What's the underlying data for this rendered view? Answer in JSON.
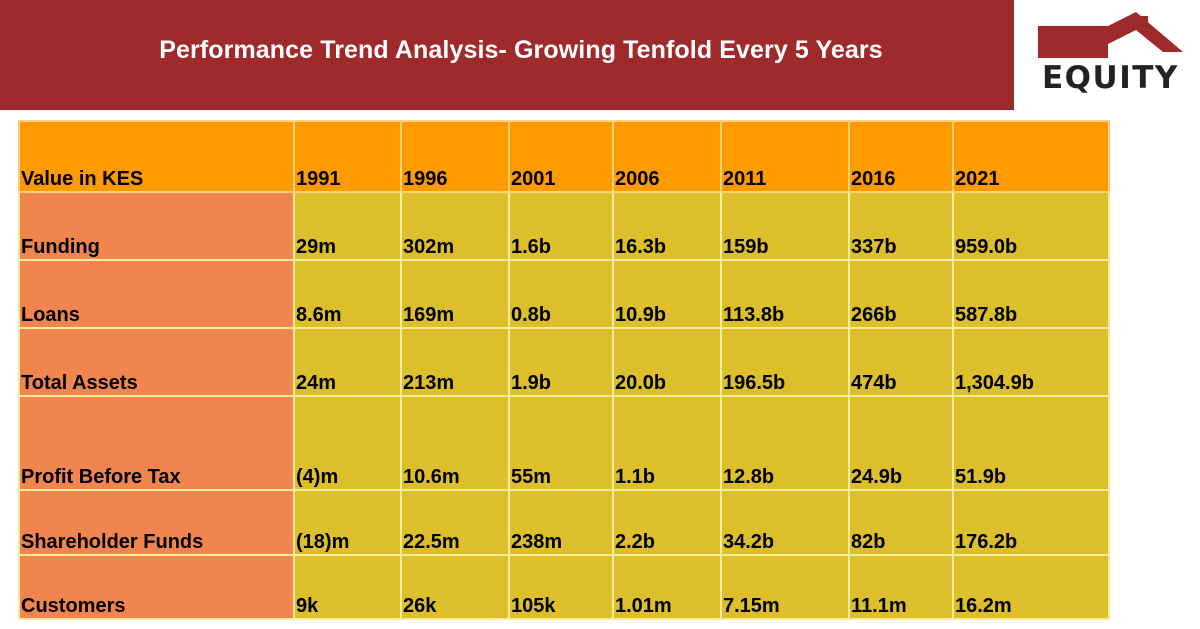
{
  "title": "Performance Trend Analysis- Growing Tenfold Every 5 Years",
  "logo": {
    "text": "EQUITY",
    "icon": "house-roof-icon",
    "color": "#9e2a2b"
  },
  "colors": {
    "banner": "#9e2a2b",
    "header_row": "#ff9a00",
    "label_column": "#f08550",
    "value_cells": "#dcbf2a"
  },
  "table": {
    "header": [
      "Value in KES",
      "1991",
      "1996",
      "2001",
      "2006",
      "2011",
      "2016",
      "2021"
    ],
    "rows": [
      {
        "label": "Funding",
        "values": [
          "29m",
          "302m",
          "1.6b",
          "16.3b",
          "159b",
          "337b",
          "959.0b"
        ]
      },
      {
        "label": "Loans",
        "values": [
          "8.6m",
          "169m",
          "0.8b",
          "10.9b",
          "113.8b",
          "266b",
          "587.8b"
        ]
      },
      {
        "label": "Total Assets",
        "values": [
          "24m",
          "213m",
          "1.9b",
          "20.0b",
          "196.5b",
          "474b",
          "1,304.9b"
        ]
      },
      {
        "label": "Profit Before Tax",
        "values": [
          "(4)m",
          "10.6m",
          "55m",
          "1.1b",
          "12.8b",
          "24.9b",
          "51.9b"
        ]
      },
      {
        "label": "Shareholder Funds",
        "values": [
          "(18)m",
          "22.5m",
          "238m",
          "2.2b",
          "34.2b",
          "82b",
          "176.2b"
        ]
      },
      {
        "label": "Customers",
        "values": [
          "9k",
          "26k",
          "105k",
          "1.01m",
          "7.15m",
          "11.1m",
          "16.2m"
        ]
      }
    ]
  }
}
